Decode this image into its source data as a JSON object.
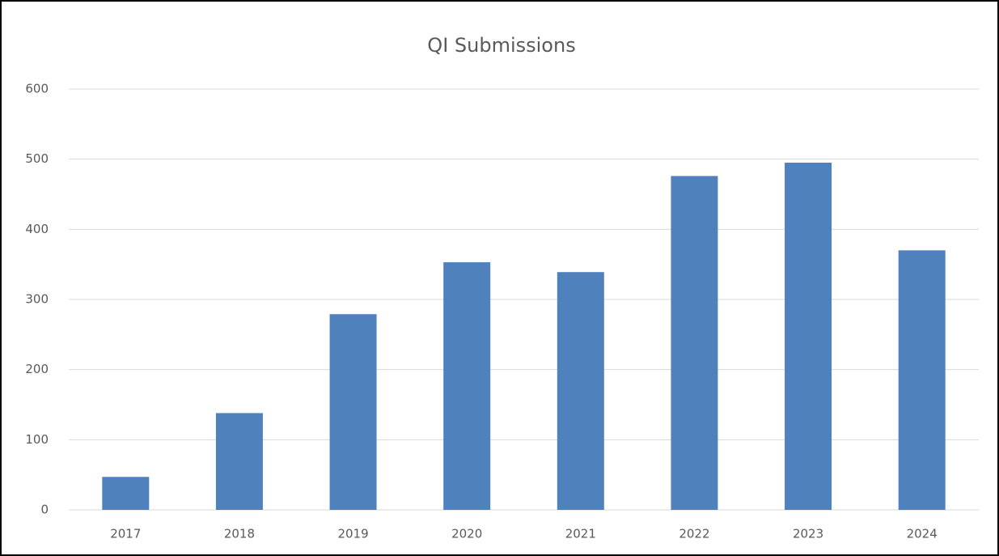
{
  "chart_data": {
    "type": "bar",
    "title": "QI Submissions",
    "categories": [
      "2017",
      "2018",
      "2019",
      "2020",
      "2021",
      "2022",
      "2023",
      "2024"
    ],
    "values": [
      47,
      138,
      279,
      353,
      339,
      476,
      495,
      370
    ],
    "color": "#4f81bd",
    "ylim": [
      0,
      600
    ],
    "yticks": [
      0,
      100,
      200,
      300,
      400,
      500,
      600
    ],
    "grid": true
  }
}
